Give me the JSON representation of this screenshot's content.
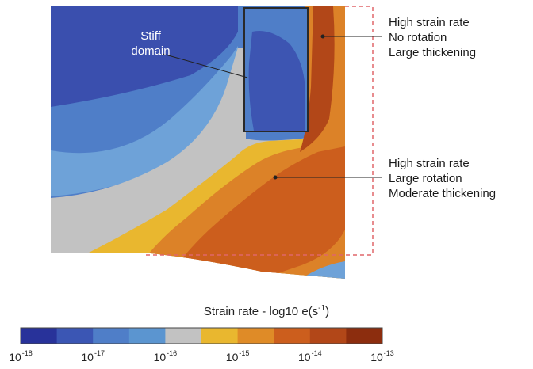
{
  "stiff_label": [
    "Stiff",
    "domain"
  ],
  "annotation_1": [
    "High strain rate",
    "No rotation",
    "Large thickening"
  ],
  "annotation_2": [
    "High strain rate",
    "Large rotation",
    "Moderate thickening"
  ],
  "colorbar": {
    "title_prefix": "Strain rate - log10 e(s",
    "title_exp": "-1",
    "title_suffix": ")",
    "tick_base": "10",
    "tick_exponents": [
      "-18",
      "-17",
      "-16",
      "-15",
      "-14",
      "-13"
    ],
    "colors": [
      "#28329a",
      "#3b56b4",
      "#4f7ec8",
      "#5b95d0",
      "#c2c2c2",
      "#e9b72f",
      "#df8b27",
      "#cc5e1d",
      "#b24718",
      "#8c2d0e"
    ]
  },
  "map_colors": {
    "deep_blue": "#3a4fae",
    "mid_blue": "#4f7ec8",
    "light_blue": "#6ea2d8",
    "gray": "#c2c2c2",
    "yellow": "#e9b72f",
    "orange": "#dc8228",
    "red_orange": "#cc5e1d",
    "dark_red": "#a83d14",
    "frame": "#2a2a2a",
    "dashed": "#e0666a"
  }
}
